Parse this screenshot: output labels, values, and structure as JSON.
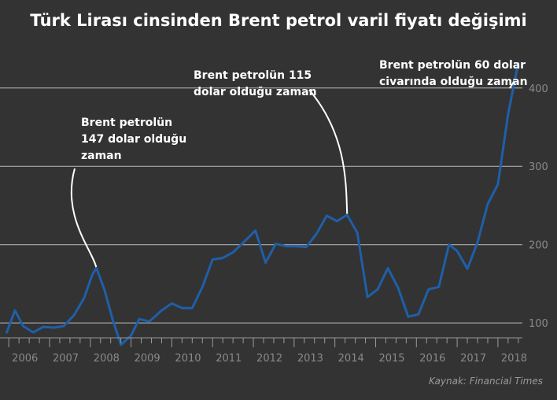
{
  "chart_data": {
    "type": "line",
    "title": "Türk Lirası cinsinden Brent petrol varil fiyatı değişimi",
    "xlabel": "",
    "ylabel": "",
    "x_range": [
      2005.9,
      2018.6
    ],
    "ylim": [
      70,
      440
    ],
    "y_ticks": [
      100,
      200,
      300,
      400
    ],
    "x_ticks": [
      2006,
      2007,
      2008,
      2009,
      2010,
      2011,
      2012,
      2013,
      2014,
      2015,
      2016,
      2017,
      2018
    ],
    "grid": true,
    "series": [
      {
        "color": "#1f5fa8",
        "points": [
          [
            2005.95,
            88
          ],
          [
            2006.15,
            116
          ],
          [
            2006.35,
            96
          ],
          [
            2006.6,
            88
          ],
          [
            2006.85,
            95
          ],
          [
            2007.1,
            94
          ],
          [
            2007.35,
            96
          ],
          [
            2007.6,
            110
          ],
          [
            2007.85,
            132
          ],
          [
            2008.05,
            162
          ],
          [
            2008.15,
            170
          ],
          [
            2008.35,
            142
          ],
          [
            2008.55,
            104
          ],
          [
            2008.75,
            72
          ],
          [
            2009.0,
            84
          ],
          [
            2009.2,
            105
          ],
          [
            2009.45,
            102
          ],
          [
            2009.75,
            116
          ],
          [
            2010.0,
            125
          ],
          [
            2010.25,
            119
          ],
          [
            2010.5,
            119
          ],
          [
            2010.75,
            146
          ],
          [
            2011.0,
            181
          ],
          [
            2011.25,
            183
          ],
          [
            2011.5,
            190
          ],
          [
            2011.8,
            205
          ],
          [
            2012.05,
            218
          ],
          [
            2012.3,
            177
          ],
          [
            2012.55,
            201
          ],
          [
            2012.8,
            198
          ],
          [
            2013.05,
            198
          ],
          [
            2013.3,
            197
          ],
          [
            2013.55,
            214
          ],
          [
            2013.8,
            237
          ],
          [
            2014.05,
            230
          ],
          [
            2014.3,
            238
          ],
          [
            2014.55,
            215
          ],
          [
            2014.8,
            133
          ],
          [
            2015.05,
            143
          ],
          [
            2015.3,
            170
          ],
          [
            2015.55,
            145
          ],
          [
            2015.8,
            108
          ],
          [
            2016.05,
            111
          ],
          [
            2016.3,
            143
          ],
          [
            2016.55,
            146
          ],
          [
            2016.8,
            200
          ],
          [
            2017.0,
            192
          ],
          [
            2017.25,
            169
          ],
          [
            2017.5,
            203
          ],
          [
            2017.75,
            252
          ],
          [
            2018.0,
            277
          ],
          [
            2018.25,
            367
          ],
          [
            2018.5,
            432
          ]
        ]
      }
    ],
    "annotations": [
      {
        "text": "Brent petrolün\n147 dolar olduğu\nzaman",
        "x": 2008.15,
        "y": 170
      },
      {
        "text": "Brent petrolün 115\ndolar olduğu zaman",
        "x": 2014.3,
        "y": 238
      },
      {
        "text": "Brent petrolün 60 dolar\ncivarında olduğu zaman",
        "x": 2018.5,
        "y": 432
      }
    ],
    "source": "Kaynak: Financial Times"
  },
  "colors": {
    "background": "#333333",
    "line": "#1f5fa8",
    "grid": "#bdbdbd",
    "tick_label": "#8a8a8a",
    "annotation": "#ffffff"
  }
}
